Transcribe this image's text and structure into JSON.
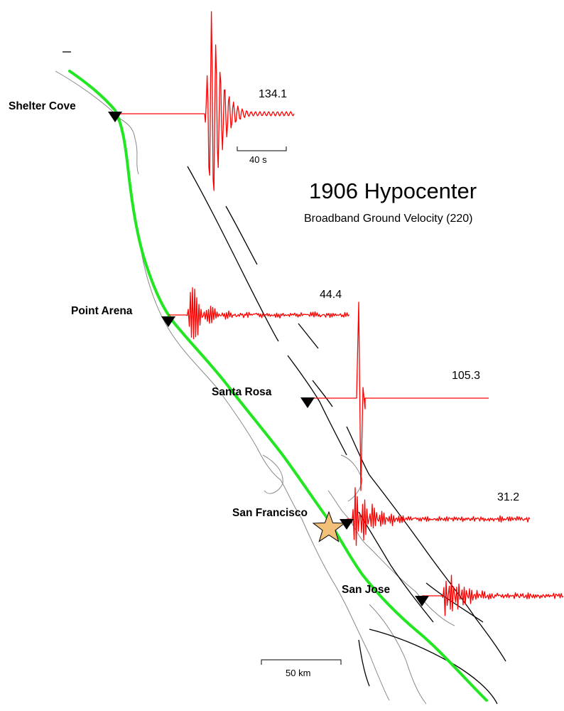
{
  "title": "1906 Hypocenter",
  "subtitle": "Broadband Ground Velocity (220)",
  "time_scale_label": "40 s",
  "distance_scale_label": "50 km",
  "colors": {
    "rupture": "#22e622",
    "waveform": "#ff0000",
    "faults": "#000000",
    "coastline": "#888888",
    "station_marker": "#000000",
    "hypocenter_star": "#f3c07a"
  },
  "stations": [
    {
      "id": "shelter-cove",
      "name": "Shelter Cove",
      "peak": "134.1"
    },
    {
      "id": "point-arena",
      "name": "Point Arena",
      "peak": "44.4"
    },
    {
      "id": "santa-rosa",
      "name": "Santa Rosa",
      "peak": "105.3"
    },
    {
      "id": "san-francisco",
      "name": "San Francisco",
      "peak": "31.2"
    },
    {
      "id": "san-jose",
      "name": "San Jose",
      "peak": ""
    }
  ]
}
